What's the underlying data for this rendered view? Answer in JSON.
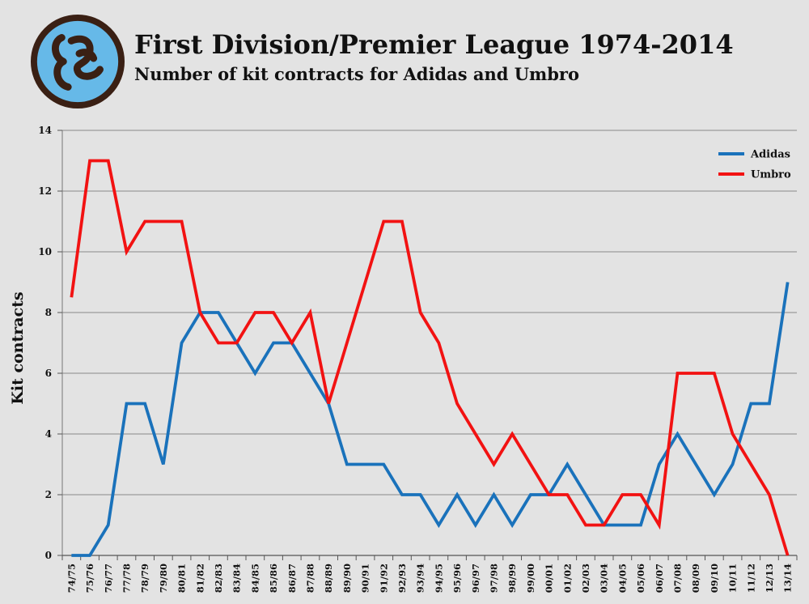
{
  "header": {
    "title": "First Division/Premier League 1974-2014",
    "subtitle": "Number of kit contracts for Adidas and Umbro"
  },
  "chart_data": {
    "type": "line",
    "title": "First Division/Premier League 1974-2014",
    "subtitle": "Number of kit contracts for Adidas and Umbro",
    "xlabel": "",
    "ylabel": "Kit contracts",
    "ylim": [
      0,
      14
    ],
    "yticks": [
      0,
      2,
      4,
      6,
      8,
      10,
      12,
      14
    ],
    "grid": "horizontal",
    "legend_position": "top-right",
    "categories": [
      "74/75",
      "75/76",
      "76/77",
      "77/78",
      "78/79",
      "79/80",
      "80/81",
      "81/82",
      "82/83",
      "83/84",
      "84/85",
      "85/86",
      "86/87",
      "87/88",
      "88/89",
      "89/90",
      "90/91",
      "91/92",
      "92/93",
      "93/94",
      "94/95",
      "95/96",
      "96/97",
      "97/98",
      "98/99",
      "99/00",
      "00/01",
      "01/02",
      "02/03",
      "03/04",
      "04/05",
      "05/06",
      "06/07",
      "07/08",
      "08/09",
      "09/10",
      "10/11",
      "11/12",
      "12/13",
      "13/14"
    ],
    "series": [
      {
        "name": "Adidas",
        "color": "#1a72bb",
        "values": [
          0,
          0,
          1,
          5,
          5,
          3,
          7,
          8,
          8,
          7,
          6,
          7,
          7,
          6,
          5,
          3,
          3,
          3,
          2,
          2,
          1,
          2,
          1,
          2,
          1,
          2,
          2,
          3,
          2,
          1,
          1,
          1,
          3,
          4,
          3,
          2,
          3,
          5,
          5,
          9
        ]
      },
      {
        "name": "Umbro",
        "color": "#f21212",
        "values": [
          8.5,
          13,
          13,
          10,
          11,
          11,
          11,
          8,
          7,
          7,
          8,
          8,
          7,
          8,
          5,
          7,
          9,
          11,
          11,
          8,
          7,
          5,
          4,
          3,
          4,
          3,
          2,
          2,
          1,
          1,
          2,
          2,
          1,
          6,
          6,
          6,
          4,
          3,
          2,
          0
        ]
      }
    ]
  },
  "logo": {
    "name": "logo-badge",
    "colors": {
      "fill": "#66b9e8",
      "ring": "#3a2014"
    }
  }
}
